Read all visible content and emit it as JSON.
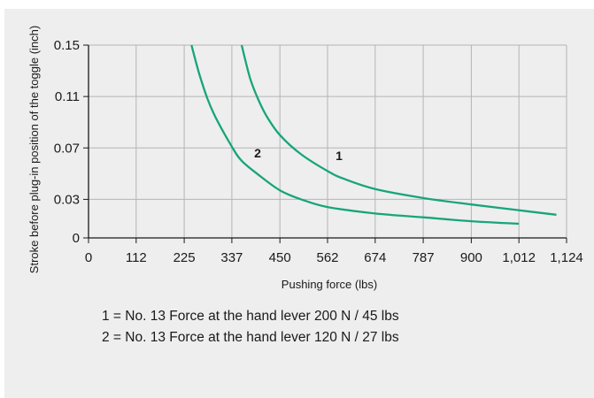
{
  "chart_data": {
    "type": "line",
    "xlabel": "Pushing force (lbs)",
    "ylabel": "Stroke before plug-in position of the toggle (inch)",
    "x_ticks": [
      "0",
      "112",
      "225",
      "337",
      "450",
      "562",
      "674",
      "787",
      "900",
      "1,012",
      "1,124"
    ],
    "x_tick_values": [
      0,
      112,
      225,
      337,
      450,
      562,
      674,
      787,
      900,
      1012,
      1124
    ],
    "y_ticks": [
      "0",
      "0.03",
      "0.07",
      "0.11",
      "0.15"
    ],
    "y_tick_values": [
      0,
      0.03,
      0.07,
      0.11,
      0.15
    ],
    "xlim": [
      0,
      1124
    ],
    "ylim": [
      0,
      0.15
    ],
    "grid": true,
    "series": [
      {
        "label": "1",
        "color": "#17a57a",
        "x": [
          360,
          380,
          400,
          420,
          450,
          500,
          562,
          600,
          674,
          787,
          900,
          1000,
          1100
        ],
        "y": [
          0.15,
          0.124,
          0.107,
          0.094,
          0.08,
          0.065,
          0.052,
          0.046,
          0.038,
          0.031,
          0.026,
          0.022,
          0.018
        ]
      },
      {
        "label": "2",
        "color": "#17a57a",
        "x": [
          242,
          260,
          280,
          300,
          337,
          360,
          400,
          450,
          500,
          562,
          674,
          787,
          900,
          1012
        ],
        "y": [
          0.15,
          0.128,
          0.108,
          0.093,
          0.071,
          0.06,
          0.049,
          0.037,
          0.03,
          0.024,
          0.019,
          0.016,
          0.013,
          0.011
        ]
      }
    ],
    "legend": [
      "1 = No. 13 Force at the hand lever 200 N / 45 lbs",
      "2 = No. 13 Force at the hand lever 120 N / 27 lbs"
    ]
  }
}
